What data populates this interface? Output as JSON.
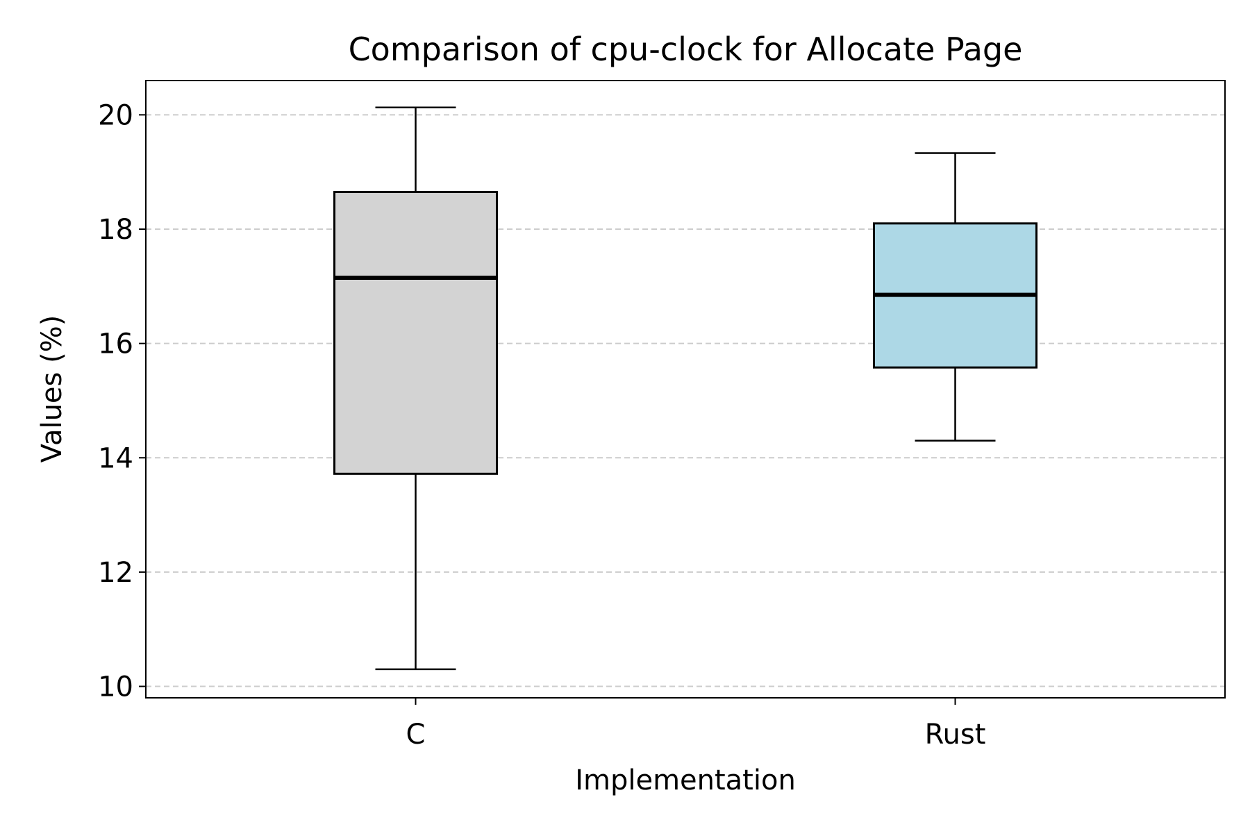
{
  "chart_data": {
    "type": "box",
    "title": "Comparison of cpu-clock for Allocate Page",
    "xlabel": "Implementation",
    "ylabel": "Values (%)",
    "categories": [
      "C",
      "Rust"
    ],
    "ylim": [
      9.8,
      20.6
    ],
    "yticks": [
      "10",
      "12",
      "14",
      "16",
      "18",
      "20"
    ],
    "grid": {
      "y": true,
      "x": false,
      "style": "dashed"
    },
    "series": [
      {
        "category": "C",
        "whisker_low": 10.3,
        "q1": 13.72,
        "median": 17.15,
        "q3": 18.65,
        "whisker_high": 20.13,
        "color": "#d3d3d3"
      },
      {
        "category": "Rust",
        "whisker_low": 14.3,
        "q1": 15.58,
        "median": 16.85,
        "q3": 18.1,
        "whisker_high": 19.33,
        "color": "#add8e6"
      }
    ],
    "colors": {
      "grid": "#cccccc",
      "frame": "#000000",
      "median": "#000000"
    }
  }
}
